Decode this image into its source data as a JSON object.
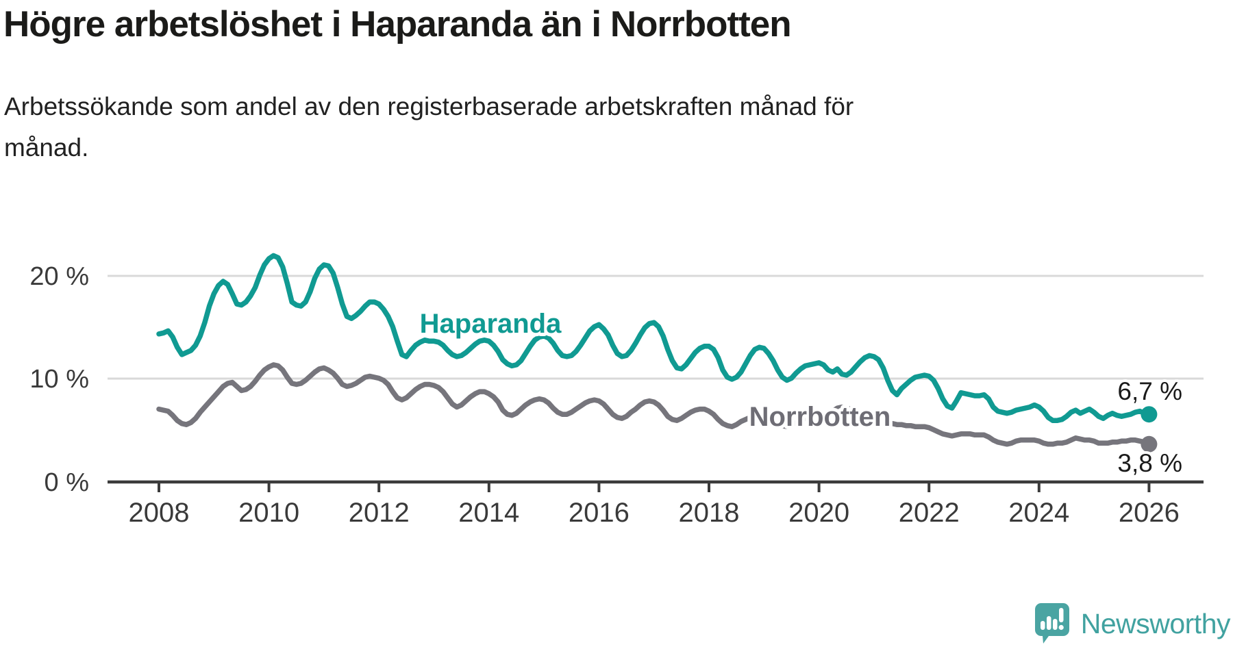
{
  "header": {
    "title": "Högre arbetslöshet i Haparanda än i Norrbotten",
    "subtitle_line1": "Arbetssökande som andel av den registerbaserade arbetskraften månad för",
    "subtitle_line2": "månad."
  },
  "branding": {
    "logo_text": "Newsworthy",
    "logo_mark": "speech-bubble-bar-chart-icon",
    "logo_color": "#4aa4a2"
  },
  "chart_data": {
    "type": "line",
    "title": "Högre arbetslöshet i Haparanda än i Norrbotten",
    "subtitle": "Arbetssökande som andel av den registerbaserade arbetskraften månad för månad.",
    "x_unit": "month",
    "x_start": "2008-01",
    "x_end": "2026-01",
    "x_tick_labels": [
      "2008",
      "2010",
      "2012",
      "2014",
      "2016",
      "2018",
      "2020",
      "2022",
      "2024",
      "2026"
    ],
    "y_tick_labels": [
      "20 %",
      "10 %",
      "0 %"
    ],
    "y_axis": {
      "min": 0,
      "max": 23,
      "gridlines_pct": [
        20,
        10
      ],
      "unit": "%"
    },
    "legend_position": "inline-labels",
    "grid": "horizontal-only",
    "series": [
      {
        "name": "Haparanda",
        "color": "#109a92",
        "end_label": "6,7 %",
        "end_value": 6.7,
        "values": [
          14.5,
          14.6,
          14.8,
          14.2,
          13.2,
          12.5,
          12.7,
          12.9,
          13.4,
          14.3,
          15.6,
          17.2,
          18.4,
          19.2,
          19.6,
          19.3,
          18.4,
          17.4,
          17.3,
          17.6,
          18.2,
          19.0,
          20.2,
          21.2,
          21.8,
          22.1,
          21.9,
          21.0,
          19.4,
          17.6,
          17.3,
          17.2,
          17.6,
          18.6,
          19.9,
          20.8,
          21.2,
          21.1,
          20.4,
          19.0,
          17.4,
          16.2,
          16.0,
          16.3,
          16.7,
          17.2,
          17.6,
          17.6,
          17.4,
          16.9,
          16.2,
          15.2,
          13.8,
          12.5,
          12.3,
          12.9,
          13.4,
          13.7,
          13.9,
          13.8,
          13.8,
          13.7,
          13.4,
          12.9,
          12.5,
          12.3,
          12.4,
          12.7,
          13.1,
          13.5,
          13.8,
          13.9,
          13.8,
          13.4,
          12.8,
          12.0,
          11.6,
          11.4,
          11.5,
          11.9,
          12.6,
          13.3,
          13.9,
          14.2,
          14.3,
          14.1,
          13.6,
          12.9,
          12.4,
          12.3,
          12.4,
          12.8,
          13.4,
          14.1,
          14.8,
          15.2,
          15.4,
          15.0,
          14.4,
          13.4,
          12.6,
          12.3,
          12.4,
          12.9,
          13.6,
          14.4,
          15.1,
          15.5,
          15.6,
          15.2,
          14.3,
          13.0,
          11.9,
          11.2,
          11.1,
          11.5,
          12.1,
          12.7,
          13.1,
          13.3,
          13.3,
          13.0,
          12.2,
          11.0,
          10.3,
          10.1,
          10.3,
          10.8,
          11.6,
          12.4,
          13.0,
          13.2,
          13.1,
          12.6,
          11.9,
          11.0,
          10.3,
          10.0,
          10.2,
          10.7,
          11.1,
          11.4,
          11.5,
          11.6,
          11.7,
          11.5,
          11.0,
          10.8,
          11.1,
          10.6,
          10.5,
          10.8,
          11.3,
          11.8,
          12.2,
          12.4,
          12.3,
          12.0,
          11.2,
          10.0,
          9.0,
          8.6,
          9.2,
          9.6,
          10.0,
          10.3,
          10.4,
          10.5,
          10.4,
          10.0,
          9.2,
          8.2,
          7.5,
          7.3,
          8.0,
          8.8,
          8.7,
          8.6,
          8.5,
          8.5,
          8.6,
          8.2,
          7.4,
          7.0,
          6.9,
          6.8,
          6.9,
          7.1,
          7.2,
          7.3,
          7.4,
          7.6,
          7.4,
          7.0,
          6.4,
          6.1,
          6.1,
          6.2,
          6.5,
          6.9,
          7.1,
          6.8,
          7.0,
          7.2,
          6.9,
          6.5,
          6.3,
          6.6,
          6.8,
          6.6,
          6.5,
          6.6,
          6.7,
          6.9,
          7.0,
          6.8,
          6.7
        ]
      },
      {
        "name": "Norrbotten",
        "color": "#76757c",
        "end_label": "3,8 %",
        "end_value": 3.8,
        "values": [
          7.2,
          7.1,
          7.0,
          6.6,
          6.1,
          5.8,
          5.7,
          5.9,
          6.3,
          6.9,
          7.4,
          7.9,
          8.4,
          8.9,
          9.4,
          9.7,
          9.8,
          9.4,
          9.0,
          9.1,
          9.4,
          9.9,
          10.5,
          11.0,
          11.3,
          11.5,
          11.4,
          11.0,
          10.3,
          9.7,
          9.6,
          9.7,
          10.0,
          10.4,
          10.8,
          11.1,
          11.2,
          11.0,
          10.7,
          10.2,
          9.6,
          9.4,
          9.5,
          9.7,
          10.0,
          10.3,
          10.4,
          10.3,
          10.2,
          10.0,
          9.6,
          8.9,
          8.3,
          8.1,
          8.3,
          8.7,
          9.1,
          9.4,
          9.6,
          9.6,
          9.5,
          9.3,
          8.9,
          8.3,
          7.7,
          7.4,
          7.6,
          8.0,
          8.4,
          8.7,
          8.9,
          8.9,
          8.7,
          8.4,
          7.9,
          7.1,
          6.7,
          6.6,
          6.8,
          7.2,
          7.6,
          7.9,
          8.1,
          8.2,
          8.1,
          7.8,
          7.3,
          6.9,
          6.7,
          6.7,
          6.9,
          7.2,
          7.5,
          7.8,
          8.0,
          8.1,
          8.0,
          7.7,
          7.2,
          6.7,
          6.4,
          6.3,
          6.5,
          6.9,
          7.2,
          7.6,
          7.9,
          8.0,
          7.9,
          7.6,
          7.1,
          6.5,
          6.2,
          6.1,
          6.3,
          6.6,
          6.9,
          7.1,
          7.2,
          7.2,
          7.0,
          6.7,
          6.2,
          5.8,
          5.6,
          5.5,
          5.7,
          6.0,
          6.2,
          6.4,
          6.6,
          6.7,
          6.8,
          6.6,
          6.3,
          5.9,
          5.6,
          5.5,
          5.7,
          5.9,
          6.1,
          6.3,
          6.4,
          6.5,
          6.6,
          6.5,
          6.6,
          7.0,
          7.3,
          7.4,
          7.3,
          7.2,
          7.0,
          6.8,
          6.6,
          6.5,
          6.4,
          6.3,
          6.1,
          5.9,
          5.8,
          5.7,
          5.7,
          5.6,
          5.6,
          5.5,
          5.5,
          5.5,
          5.4,
          5.2,
          5.0,
          4.8,
          4.7,
          4.6,
          4.7,
          4.8,
          4.8,
          4.8,
          4.7,
          4.7,
          4.7,
          4.5,
          4.2,
          4.0,
          3.9,
          3.8,
          3.9,
          4.1,
          4.2,
          4.2,
          4.2,
          4.2,
          4.1,
          3.9,
          3.8,
          3.8,
          3.9,
          3.9,
          4.0,
          4.2,
          4.4,
          4.3,
          4.2,
          4.2,
          4.1,
          3.9,
          3.9,
          3.9,
          4.0,
          4.0,
          4.1,
          4.1,
          4.2,
          4.2,
          4.1,
          4.0,
          3.8
        ]
      }
    ]
  }
}
